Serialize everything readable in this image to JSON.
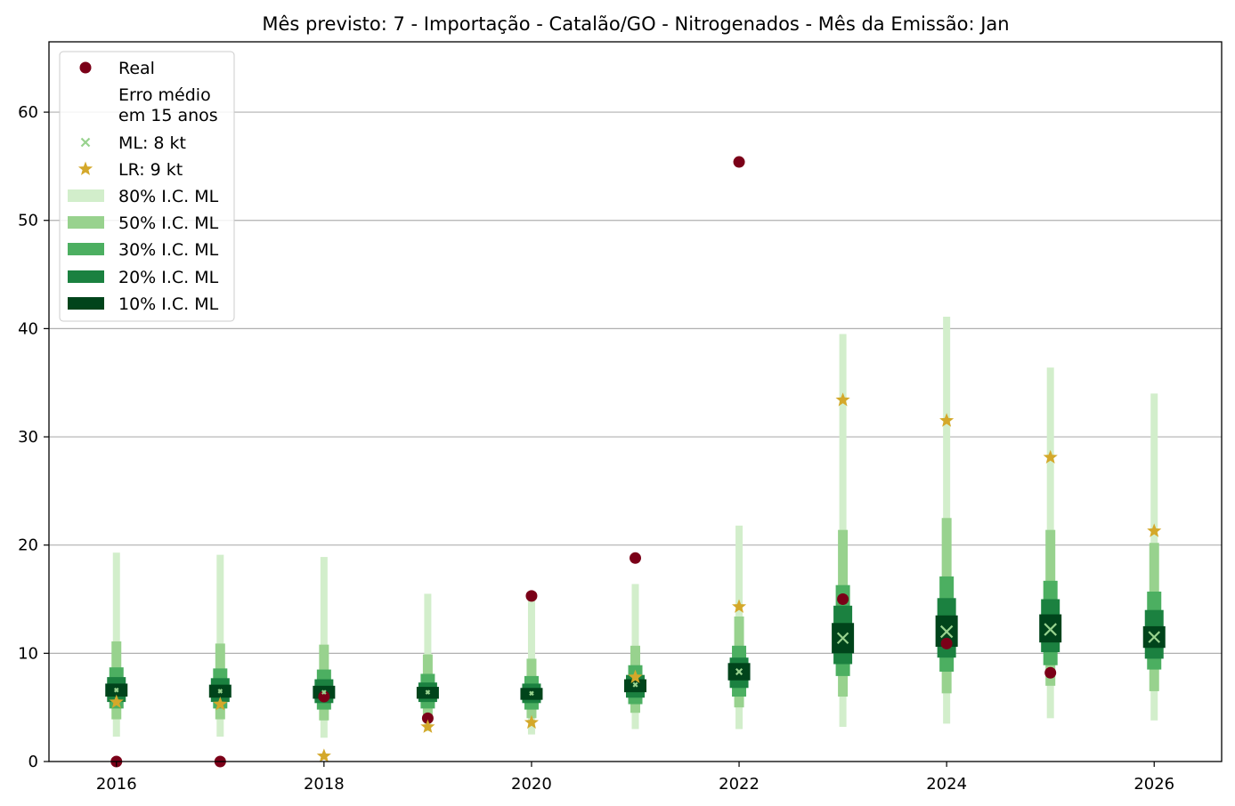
{
  "chart_data": {
    "type": "scatter",
    "title": "Mês previsto: 7 - Importação - Catalão/GO - Nitrogenados - Mês da Emissão: Jan",
    "xlabel": "",
    "ylabel": "",
    "xlim": [
      2015.35,
      2026.65
    ],
    "ylim": [
      0,
      66.5
    ],
    "x_ticks": [
      "2016",
      "2018",
      "2020",
      "2022",
      "2024",
      "2026"
    ],
    "y_ticks": [
      "0",
      "10",
      "20",
      "30",
      "40",
      "50",
      "60"
    ],
    "grid": "horizontal",
    "legend_position": "top-left",
    "years": [
      2016,
      2017,
      2018,
      2019,
      2020,
      2021,
      2022,
      2023,
      2024,
      2025,
      2026
    ],
    "real": [
      0,
      0,
      6.0,
      4.0,
      15.3,
      18.8,
      55.4,
      15.0,
      10.9,
      8.2,
      null
    ],
    "ml": [
      6.6,
      6.5,
      6.4,
      6.4,
      6.3,
      7.1,
      8.3,
      11.4,
      12.0,
      12.2,
      11.5
    ],
    "lr": [
      5.5,
      5.3,
      0.5,
      3.2,
      3.6,
      7.8,
      14.3,
      33.4,
      31.5,
      28.1,
      21.3
    ],
    "ci": {
      "ci80": [
        [
          2.3,
          19.3
        ],
        [
          2.3,
          19.1
        ],
        [
          2.2,
          18.9
        ],
        [
          2.8,
          15.5
        ],
        [
          2.5,
          15.0
        ],
        [
          3.0,
          16.4
        ],
        [
          3.0,
          21.8
        ],
        [
          3.2,
          39.5
        ],
        [
          3.5,
          41.1
        ],
        [
          4.0,
          36.4
        ],
        [
          3.8,
          34.0
        ]
      ],
      "ci50": [
        [
          3.9,
          11.1
        ],
        [
          3.9,
          10.9
        ],
        [
          3.8,
          10.8
        ],
        [
          4.3,
          9.9
        ],
        [
          4.0,
          9.5
        ],
        [
          4.5,
          10.7
        ],
        [
          5.0,
          13.4
        ],
        [
          6.0,
          21.4
        ],
        [
          6.3,
          22.5
        ],
        [
          7.0,
          21.4
        ],
        [
          6.5,
          20.2
        ]
      ],
      "ci30": [
        [
          4.9,
          8.7
        ],
        [
          4.9,
          8.6
        ],
        [
          4.8,
          8.5
        ],
        [
          4.9,
          8.1
        ],
        [
          4.8,
          7.9
        ],
        [
          5.3,
          8.9
        ],
        [
          6.0,
          10.7
        ],
        [
          7.9,
          16.3
        ],
        [
          8.3,
          17.1
        ],
        [
          8.9,
          16.7
        ],
        [
          8.5,
          15.7
        ]
      ],
      "ci20": [
        [
          5.5,
          7.8
        ],
        [
          5.5,
          7.7
        ],
        [
          5.4,
          7.6
        ],
        [
          5.5,
          7.3
        ],
        [
          5.4,
          7.2
        ],
        [
          5.9,
          8.0
        ],
        [
          6.8,
          9.6
        ],
        [
          9.0,
          14.4
        ],
        [
          9.6,
          15.1
        ],
        [
          10.1,
          15.0
        ],
        [
          9.5,
          14.0
        ]
      ],
      "ci10": [
        [
          6.0,
          7.2
        ],
        [
          5.9,
          7.1
        ],
        [
          5.8,
          7.0
        ],
        [
          5.8,
          6.9
        ],
        [
          5.7,
          6.8
        ],
        [
          6.4,
          7.6
        ],
        [
          7.5,
          9.1
        ],
        [
          10.0,
          12.8
        ],
        [
          10.6,
          13.5
        ],
        [
          11.0,
          13.6
        ],
        [
          10.5,
          12.5
        ]
      ]
    },
    "legend": [
      {
        "key": "real",
        "label": "Real",
        "marker": "circle",
        "color": "#7b0018"
      },
      {
        "key": "erro",
        "label": "Erro médio\nem 15 anos",
        "marker": "none",
        "color": "#ffffff"
      },
      {
        "key": "ml",
        "label": "ML: 8 kt",
        "marker": "x",
        "color": "#98d28e"
      },
      {
        "key": "lr",
        "label": "LR: 9 kt",
        "marker": "star",
        "color": "#d4a82a"
      },
      {
        "key": "ci80",
        "label": "80% I.C. ML",
        "marker": "band",
        "color": "#d2eecb"
      },
      {
        "key": "ci50",
        "label": "50% I.C. ML",
        "marker": "band",
        "color": "#98d28e"
      },
      {
        "key": "ci30",
        "label": "30% I.C. ML",
        "marker": "band",
        "color": "#4caf61"
      },
      {
        "key": "ci20",
        "label": "20% I.C. ML",
        "marker": "band",
        "color": "#1b8140"
      },
      {
        "key": "ci10",
        "label": "10% I.C. ML",
        "marker": "band",
        "color": "#00441b"
      }
    ],
    "colors": {
      "real": "#7b0018",
      "ml": "#98d28e",
      "lr": "#d4a82a",
      "ci80": "#d2eecb",
      "ci50": "#98d28e",
      "ci30": "#4caf61",
      "ci20": "#1b8140",
      "ci10": "#00441b",
      "grid": "#b0b0b0"
    }
  }
}
